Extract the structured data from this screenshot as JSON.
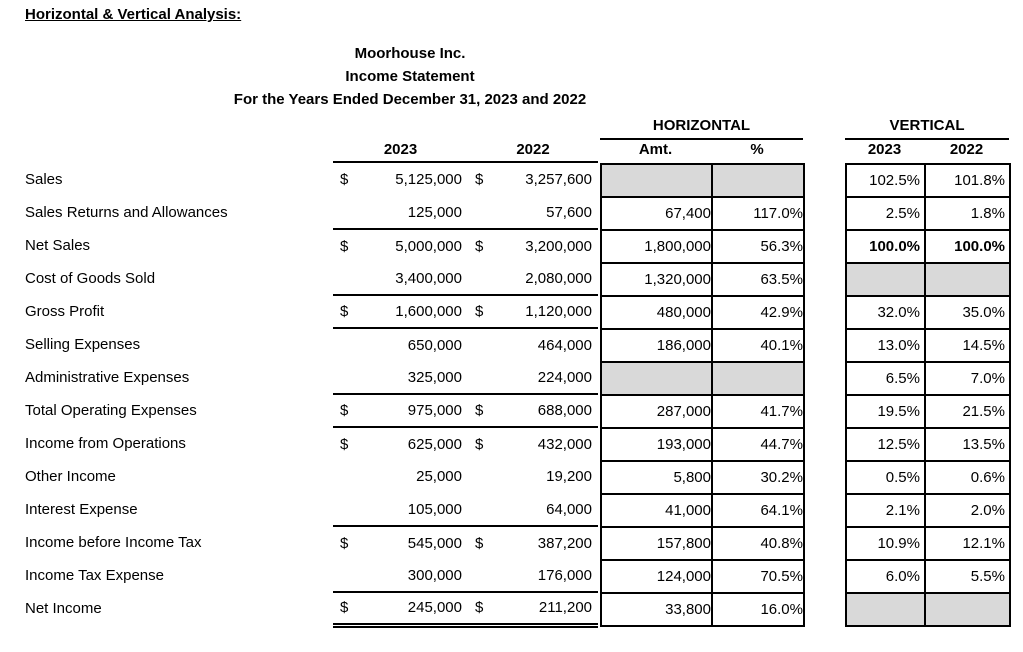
{
  "page_title": "Horizontal & Vertical Analysis:",
  "statement": {
    "company": "Moorhouse Inc.",
    "title": "Income Statement",
    "period": "For the Years Ended December 31, 2023 and 2022"
  },
  "headers": {
    "horizontal_section": "HORIZONTAL",
    "vertical_section": "VERTICAL",
    "main_2023": "2023",
    "main_2022": "2022",
    "h_amt": "Amt.",
    "h_pct": "%",
    "v_2023": "2023",
    "v_2022": "2022"
  },
  "colors": {
    "cell_shading": "#d9d9d9",
    "text": "#000000",
    "border": "#000000"
  },
  "rows": [
    {
      "label": "Sales",
      "dollar_2023": "$",
      "amount_2023": "5,125,000",
      "dollar_2022": "$",
      "amount_2022": "3,257,600",
      "h_amt": "",
      "h_pct": "",
      "h_shaded": true,
      "v_2023": "102.5%",
      "v_2022": "101.8%",
      "v_shaded": false,
      "v_bold": false,
      "rule": "none"
    },
    {
      "label": "Sales Returns and Allowances",
      "dollar_2023": "",
      "amount_2023": "125,000",
      "dollar_2022": "",
      "amount_2022": "57,600",
      "h_amt": "67,400",
      "h_pct": "117.0%",
      "h_shaded": false,
      "v_2023": "2.5%",
      "v_2022": "1.8%",
      "v_shaded": false,
      "v_bold": false,
      "rule": "single"
    },
    {
      "label": "Net Sales",
      "dollar_2023": "$",
      "amount_2023": "5,000,000",
      "dollar_2022": "$",
      "amount_2022": "3,200,000",
      "h_amt": "1,800,000",
      "h_pct": "56.3%",
      "h_shaded": false,
      "v_2023": "100.0%",
      "v_2022": "100.0%",
      "v_shaded": false,
      "v_bold": true,
      "rule": "none"
    },
    {
      "label": "Cost of Goods Sold",
      "dollar_2023": "",
      "amount_2023": "3,400,000",
      "dollar_2022": "",
      "amount_2022": "2,080,000",
      "h_amt": "1,320,000",
      "h_pct": "63.5%",
      "h_shaded": false,
      "v_2023": "",
      "v_2022": "",
      "v_shaded": true,
      "v_bold": false,
      "rule": "single"
    },
    {
      "label": "Gross Profit",
      "dollar_2023": "$",
      "amount_2023": "1,600,000",
      "dollar_2022": "$",
      "amount_2022": "1,120,000",
      "h_amt": "480,000",
      "h_pct": "42.9%",
      "h_shaded": false,
      "v_2023": "32.0%",
      "v_2022": "35.0%",
      "v_shaded": false,
      "v_bold": false,
      "rule": "single"
    },
    {
      "label": "Selling Expenses",
      "dollar_2023": "",
      "amount_2023": "650,000",
      "dollar_2022": "",
      "amount_2022": "464,000",
      "h_amt": "186,000",
      "h_pct": "40.1%",
      "h_shaded": false,
      "v_2023": "13.0%",
      "v_2022": "14.5%",
      "v_shaded": false,
      "v_bold": false,
      "rule": "none"
    },
    {
      "label": "Administrative Expenses",
      "dollar_2023": "",
      "amount_2023": "325,000",
      "dollar_2022": "",
      "amount_2022": "224,000",
      "h_amt": "",
      "h_pct": "",
      "h_shaded": true,
      "v_2023": "6.5%",
      "v_2022": "7.0%",
      "v_shaded": false,
      "v_bold": false,
      "rule": "single"
    },
    {
      "label": "Total Operating Expenses",
      "dollar_2023": "$",
      "amount_2023": "975,000",
      "dollar_2022": "$",
      "amount_2022": "688,000",
      "h_amt": "287,000",
      "h_pct": "41.7%",
      "h_shaded": false,
      "v_2023": "19.5%",
      "v_2022": "21.5%",
      "v_shaded": false,
      "v_bold": false,
      "rule": "single"
    },
    {
      "label": "Income from Operations",
      "dollar_2023": "$",
      "amount_2023": "625,000",
      "dollar_2022": "$",
      "amount_2022": "432,000",
      "h_amt": "193,000",
      "h_pct": "44.7%",
      "h_shaded": false,
      "v_2023": "12.5%",
      "v_2022": "13.5%",
      "v_shaded": false,
      "v_bold": false,
      "rule": "none"
    },
    {
      "label": "Other Income",
      "dollar_2023": "",
      "amount_2023": "25,000",
      "dollar_2022": "",
      "amount_2022": "19,200",
      "h_amt": "5,800",
      "h_pct": "30.2%",
      "h_shaded": false,
      "v_2023": "0.5%",
      "v_2022": "0.6%",
      "v_shaded": false,
      "v_bold": false,
      "rule": "none"
    },
    {
      "label": "Interest Expense",
      "dollar_2023": "",
      "amount_2023": "105,000",
      "dollar_2022": "",
      "amount_2022": "64,000",
      "h_amt": "41,000",
      "h_pct": "64.1%",
      "h_shaded": false,
      "v_2023": "2.1%",
      "v_2022": "2.0%",
      "v_shaded": false,
      "v_bold": false,
      "rule": "single"
    },
    {
      "label": "Income before Income Tax",
      "dollar_2023": "$",
      "amount_2023": "545,000",
      "dollar_2022": "$",
      "amount_2022": "387,200",
      "h_amt": "157,800",
      "h_pct": "40.8%",
      "h_shaded": false,
      "v_2023": "10.9%",
      "v_2022": "12.1%",
      "v_shaded": false,
      "v_bold": false,
      "rule": "none"
    },
    {
      "label": "Income Tax Expense",
      "dollar_2023": "",
      "amount_2023": "300,000",
      "dollar_2022": "",
      "amount_2022": "176,000",
      "h_amt": "124,000",
      "h_pct": "70.5%",
      "h_shaded": false,
      "v_2023": "6.0%",
      "v_2022": "5.5%",
      "v_shaded": false,
      "v_bold": false,
      "rule": "single"
    },
    {
      "label": "Net Income",
      "dollar_2023": "$",
      "amount_2023": "245,000",
      "dollar_2022": "$",
      "amount_2022": "211,200",
      "h_amt": "33,800",
      "h_pct": "16.0%",
      "h_shaded": false,
      "v_2023": "",
      "v_2022": "",
      "v_shaded": true,
      "v_bold": false,
      "rule": "double"
    }
  ]
}
